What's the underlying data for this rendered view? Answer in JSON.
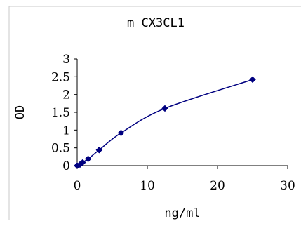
{
  "chart_data": {
    "type": "scatter",
    "title": "m CX3CL1",
    "xlabel": "ng/ml",
    "ylabel": "OD",
    "x": [
      0,
      0.39,
      0.78,
      1.56,
      3.13,
      6.25,
      12.5,
      25
    ],
    "y": [
      0.0,
      0.03,
      0.09,
      0.19,
      0.44,
      0.92,
      1.61,
      2.42
    ],
    "smooth_line": true,
    "marker": "diamond",
    "line_color": "#000080",
    "marker_color": "#000080",
    "xlim": [
      0,
      30
    ],
    "ylim": [
      0,
      3
    ],
    "x_ticks": [
      "0",
      "10",
      "20",
      "30"
    ],
    "y_ticks": [
      "0",
      "0.5",
      "1",
      "1.5",
      "2",
      "2.5",
      "3"
    ],
    "grid": false,
    "legend": "none"
  }
}
